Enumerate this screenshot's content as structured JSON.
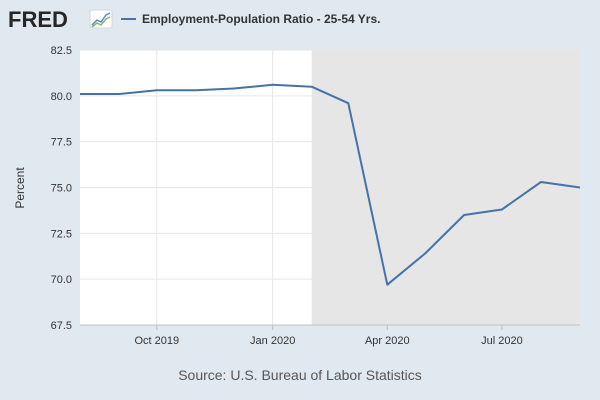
{
  "header": {
    "logo_text": "FRED",
    "logo_icon": "line-chart-icon"
  },
  "colors": {
    "background": "#e1e9f0",
    "plot_background": "#ffffff",
    "recession_shade": "#e6e6e6",
    "series_line": "#4572a7",
    "grid": "#e6e6e6"
  },
  "footer": {
    "source": "Source: U.S. Bureau of Labor Statistics"
  },
  "chart_data": {
    "type": "line",
    "title": "",
    "xlabel": "",
    "ylabel": "Percent",
    "ylim": [
      67.5,
      82.5
    ],
    "yticks": [
      "82.5",
      "80.0",
      "77.5",
      "75.0",
      "72.5",
      "70.0",
      "67.5"
    ],
    "xticks": [
      "Oct 2019",
      "Jan 2020",
      "Apr 2020",
      "Jul 2020"
    ],
    "xlim": [
      "2019-08-01",
      "2020-09-01"
    ],
    "grid": true,
    "legend": "top",
    "recession": {
      "start": "2020-02-01",
      "end": "2020-09-01"
    },
    "series": [
      {
        "name": "Employment-Population Ratio - 25-54 Yrs.",
        "x": [
          "2019-08-01",
          "2019-09-01",
          "2019-10-01",
          "2019-11-01",
          "2019-12-01",
          "2020-01-01",
          "2020-02-01",
          "2020-03-01",
          "2020-04-01",
          "2020-05-01",
          "2020-06-01",
          "2020-07-01",
          "2020-08-01",
          "2020-09-01"
        ],
        "values": [
          80.1,
          80.1,
          80.3,
          80.3,
          80.4,
          80.6,
          80.5,
          79.6,
          69.7,
          71.4,
          73.5,
          73.8,
          75.3,
          75.0
        ]
      }
    ]
  }
}
